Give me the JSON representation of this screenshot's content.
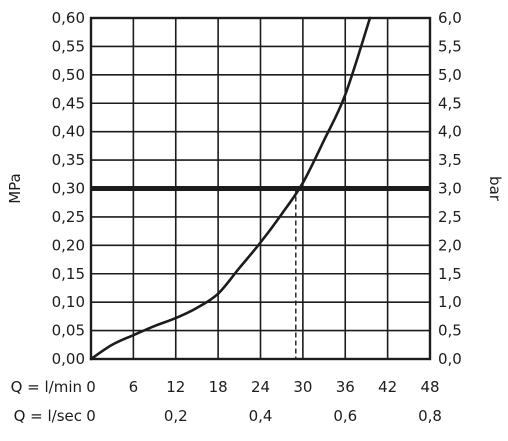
{
  "chart_data": {
    "type": "line",
    "title": "",
    "xlabel": "",
    "ylabel": "MPa",
    "ylabel_right": "bar",
    "x_axis_flow_lmin": {
      "prefix": "Q = l/min",
      "ticks": [
        0,
        6,
        12,
        18,
        24,
        30,
        36,
        42,
        48
      ],
      "tick_labels": [
        "0",
        "6",
        "12",
        "18",
        "24",
        "30",
        "36",
        "42",
        "48"
      ]
    },
    "x_axis_flow_lsec": {
      "prefix": "Q = l/sec",
      "ticks": [
        0,
        0.2,
        0.4,
        0.6,
        0.8
      ],
      "tick_labels": [
        "0",
        "0,2",
        "0,4",
        "0,6",
        "0,8"
      ]
    },
    "xlim": [
      0,
      48
    ],
    "ylim": [
      0,
      0.6
    ],
    "y_left_ticks": [
      0,
      0.05,
      0.1,
      0.15,
      0.2,
      0.25,
      0.3,
      0.35,
      0.4,
      0.45,
      0.5,
      0.55,
      0.6
    ],
    "y_left_tick_labels": [
      "0,00",
      "0,05",
      "0,10",
      "0,15",
      "0,20",
      "0,25",
      "0,30",
      "0,35",
      "0,40",
      "0,45",
      "0,50",
      "0,55",
      "0,60"
    ],
    "y_right_tick_labels": [
      "0,0",
      "0,5",
      "1,0",
      "1,5",
      "2,0",
      "2,5",
      "3,0",
      "3,5",
      "4,0",
      "4,5",
      "5,0",
      "5,5",
      "6,0"
    ],
    "grid": true,
    "series": [
      {
        "x": [
          0,
          3,
          6,
          9,
          12,
          15,
          18,
          21,
          24,
          27,
          30,
          33,
          36,
          39.5
        ],
        "values": [
          0,
          0.025,
          0.042,
          0.058,
          0.072,
          0.09,
          0.115,
          0.16,
          0.205,
          0.255,
          0.31,
          0.385,
          0.465,
          0.6
        ]
      }
    ],
    "reference_line": {
      "y": 0.3
    },
    "marker_line": {
      "x": 29,
      "y_from": 0,
      "y_to": 0.3
    }
  }
}
